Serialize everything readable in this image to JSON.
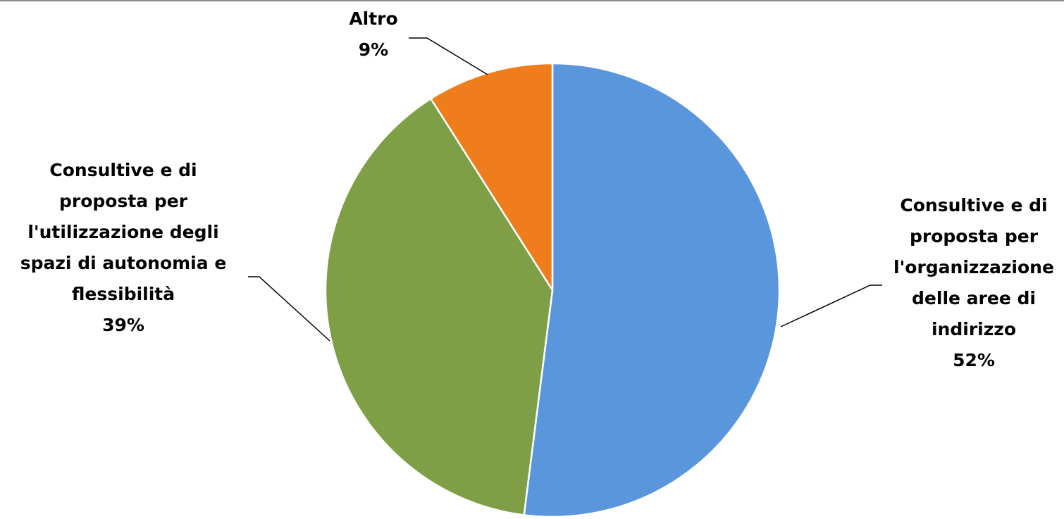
{
  "chart_data": {
    "type": "pie",
    "title": "",
    "slices": [
      {
        "label_lines": [
          "Consultive e di",
          "proposta per",
          "l'organizzazione",
          "delle aree di",
          "indirizzo"
        ],
        "percent_label": "52%",
        "value": 52,
        "color": "#5a96dc"
      },
      {
        "label_lines": [
          "Consultive e di",
          "proposta per",
          "l'utilizzazione degli",
          "spazi di autonomia e",
          "flessibilità"
        ],
        "percent_label": "39%",
        "value": 39,
        "color": "#7e9f45"
      },
      {
        "label_lines": [
          "Altro"
        ],
        "percent_label": "9%",
        "value": 9,
        "color": "#f07d1c"
      }
    ],
    "start_angle_deg": 0,
    "direction": "clockwise",
    "legend": "none"
  }
}
